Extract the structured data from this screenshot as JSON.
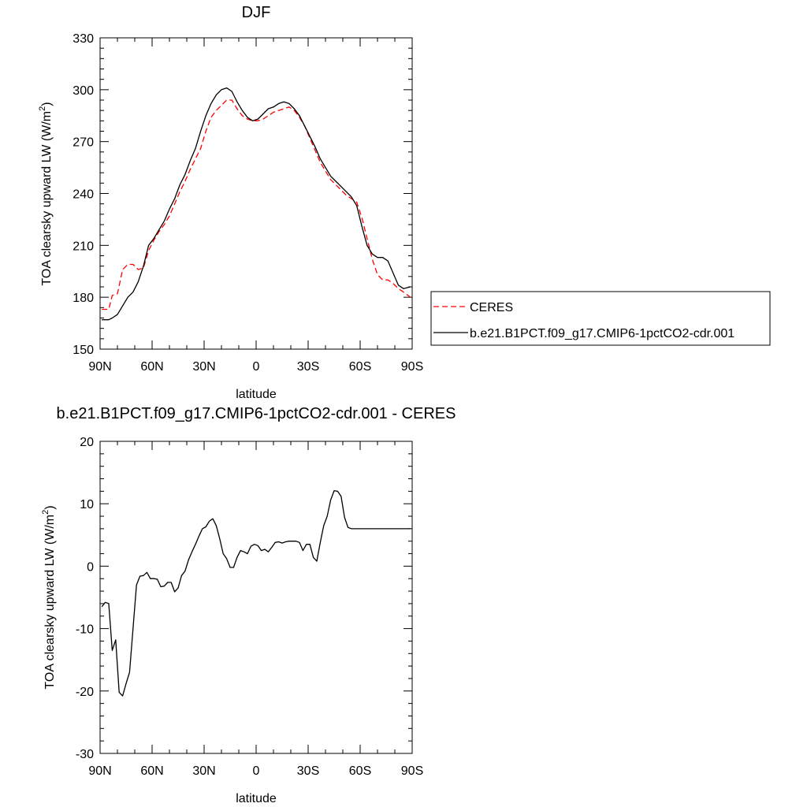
{
  "chart_data": [
    {
      "type": "line",
      "title": "DJF",
      "xlabel": "latitude",
      "ylabel": "TOA clearsky upward LW (W/m",
      "ylabel_sup": "2",
      "ylabel_close": ")",
      "xlim": [
        90,
        -90
      ],
      "ylim": [
        150,
        330
      ],
      "x_ticks": [
        90,
        60,
        30,
        0,
        -30,
        -60,
        -90
      ],
      "x_tick_labels": [
        "90N",
        "60N",
        "30N",
        "0",
        "30S",
        "60S",
        "90S"
      ],
      "y_ticks": [
        150,
        180,
        210,
        240,
        270,
        300,
        330
      ],
      "y_tick_labels": [
        "150",
        "180",
        "210",
        "240",
        "270",
        "300",
        "330"
      ],
      "legend_position": "right",
      "grid": false,
      "series": [
        {
          "name": "CERES",
          "color": "#ff0000",
          "dash": "dashed",
          "x": [
            89,
            85,
            83,
            80,
            77,
            74,
            71,
            68,
            65,
            62,
            59,
            56,
            53,
            50,
            47,
            44,
            41,
            38,
            35,
            32,
            29,
            26,
            23,
            20,
            17,
            14,
            11,
            8,
            5,
            2,
            -1,
            -4,
            -7,
            -10,
            -13,
            -16,
            -19,
            -22,
            -25,
            -28,
            -31,
            -34,
            -37,
            -40,
            -43,
            -46,
            -49,
            -52,
            -55,
            -58,
            -61,
            -64,
            -67,
            -70,
            -73,
            -76,
            -79,
            -82,
            -85,
            -89
          ],
          "y": [
            173,
            173,
            181,
            182,
            196,
            199,
            199,
            196,
            197,
            207,
            213,
            218,
            222,
            227,
            234,
            241,
            247,
            254,
            260,
            266,
            276,
            284,
            288,
            291,
            294,
            294,
            289,
            285,
            283,
            282,
            282,
            283,
            285,
            287,
            288,
            289,
            290,
            288,
            284,
            279,
            272,
            265,
            258,
            253,
            248,
            245,
            242,
            239,
            237,
            235,
            226,
            214,
            202,
            193,
            190,
            190,
            188,
            185,
            183,
            180
          ]
        },
        {
          "name": "b.e21.B1PCT.f09_g17.CMIP6-1pctCO2-cdr.001",
          "color": "#000000",
          "dash": "solid",
          "x": [
            89,
            85,
            83,
            80,
            77,
            74,
            71,
            68,
            65,
            62,
            59,
            56,
            53,
            50,
            47,
            44,
            41,
            38,
            35,
            32,
            29,
            26,
            23,
            20,
            17,
            14,
            11,
            8,
            5,
            2,
            -1,
            -4,
            -7,
            -10,
            -13,
            -16,
            -19,
            -22,
            -25,
            -28,
            -31,
            -34,
            -37,
            -40,
            -43,
            -46,
            -49,
            -52,
            -55,
            -58,
            -61,
            -64,
            -67,
            -70,
            -73,
            -76,
            -79,
            -82,
            -85,
            -89
          ],
          "y": [
            167,
            167,
            168,
            170,
            175,
            180,
            183,
            189,
            198,
            210,
            214,
            219,
            224,
            231,
            237,
            245,
            251,
            259,
            266,
            276,
            285,
            292,
            297,
            300,
            301,
            299,
            293,
            288,
            284,
            282,
            283,
            286,
            289,
            290,
            292,
            293,
            292,
            289,
            285,
            279,
            273,
            267,
            260,
            255,
            250,
            247,
            244,
            241,
            238,
            233,
            221,
            210,
            205,
            203,
            203,
            201,
            194,
            187,
            185,
            186
          ]
        }
      ]
    },
    {
      "type": "line",
      "title": "b.e21.B1PCT.f09_g17.CMIP6-1pctCO2-cdr.001 - CERES",
      "xlabel": "latitude",
      "ylabel": "TOA clearsky upward LW (W/m",
      "ylabel_sup": "2",
      "ylabel_close": ")",
      "xlim": [
        90,
        -90
      ],
      "ylim": [
        -30,
        20
      ],
      "x_ticks": [
        90,
        60,
        30,
        0,
        -30,
        -60,
        -90
      ],
      "x_tick_labels": [
        "90N",
        "60N",
        "30N",
        "0",
        "30S",
        "60S",
        "90S"
      ],
      "y_ticks": [
        -30,
        -20,
        -10,
        0,
        10,
        20
      ],
      "y_tick_labels": [
        "-30",
        "-20",
        "-10",
        "0",
        "10",
        "20"
      ],
      "grid": false,
      "series": [
        {
          "color": "#000000",
          "dash": "solid",
          "x": [
            89,
            87,
            85,
            83,
            81,
            79,
            77,
            75,
            73,
            71,
            69,
            67,
            65,
            63,
            61,
            59,
            57,
            55,
            53,
            51,
            49,
            47,
            45,
            43,
            41,
            39,
            37,
            35,
            33,
            31,
            29,
            27,
            25,
            23,
            21,
            19,
            17,
            15,
            13,
            11,
            9,
            7,
            5,
            3,
            1,
            -1,
            -3,
            -5,
            -7,
            -9,
            -11,
            -13,
            -15,
            -17,
            -19,
            -21,
            -23,
            -25,
            -27,
            -29,
            -31,
            -33,
            -35,
            -37,
            -39,
            -41,
            -43,
            -45,
            -47,
            -49,
            -51,
            -53,
            -55,
            -57,
            -59,
            -61,
            -63,
            -65,
            -67,
            -69,
            -71,
            -73,
            -75,
            -77,
            -79,
            -81,
            -83,
            -85,
            -87,
            -89
          ],
          "y": [
            -6.5,
            -5.8,
            -6.0,
            -13.5,
            -11.8,
            -20.2,
            -20.8,
            -18.8,
            -17.0,
            -10.0,
            -3.0,
            -1.6,
            -1.5,
            -1.0,
            -2.0,
            -2.0,
            -2.1,
            -3.3,
            -3.2,
            -2.6,
            -2.6,
            -4.1,
            -3.5,
            -1.5,
            -0.8,
            1.0,
            2.3,
            3.5,
            4.8,
            6.0,
            6.3,
            7.2,
            7.6,
            6.5,
            4.4,
            2.0,
            1.2,
            -0.2,
            -0.2,
            1.4,
            2.5,
            2.3,
            2.0,
            3.2,
            3.5,
            3.3,
            2.5,
            2.7,
            2.3,
            3.0,
            3.8,
            3.9,
            3.7,
            3.9,
            4.0,
            4.0,
            4.0,
            3.8,
            2.5,
            3.5,
            3.5,
            1.4,
            0.8,
            3.8,
            6.5,
            8.0,
            10.6,
            12.1,
            12.0,
            11.2,
            7.8,
            6.2,
            6.0,
            6.0,
            6.0,
            6.0,
            6.0,
            6.0,
            6.0,
            6.0,
            6.0,
            6.0,
            6.0,
            6.0,
            6.0,
            6.0,
            6.0,
            6.0,
            6.0,
            6.0
          ]
        }
      ]
    }
  ]
}
